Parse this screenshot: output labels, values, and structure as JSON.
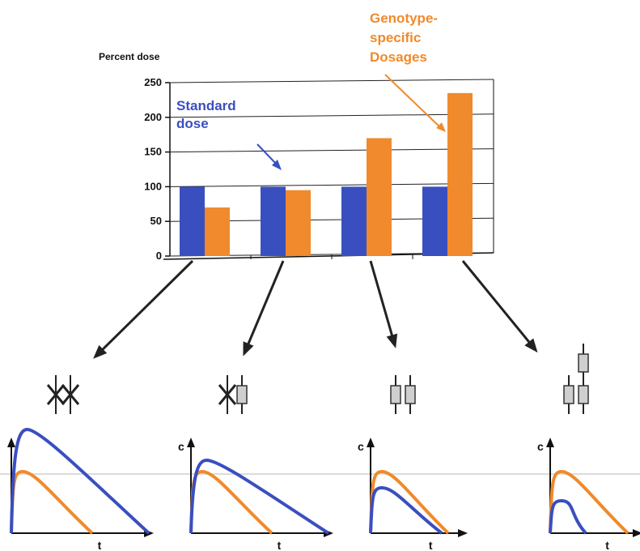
{
  "colors": {
    "standard": "#3a4fbf",
    "genotype": "#f08a2c",
    "axis": "#111111",
    "grid": "#222222",
    "gene": "#cfcfcf"
  },
  "chart_data": {
    "type": "bar",
    "ylabel": "Percent dose",
    "ylim": [
      0,
      250
    ],
    "yticks": [
      0,
      50,
      100,
      150,
      200,
      250
    ],
    "grid": true,
    "categories": [
      "",
      "",
      "",
      ""
    ],
    "series": [
      {
        "name": "Standard dose",
        "values": [
          100,
          100,
          100,
          100
        ]
      },
      {
        "name": "Genotype-specific Dosages",
        "values": [
          70,
          95,
          170,
          235
        ]
      }
    ],
    "annotations": [
      {
        "text": "Standard dose",
        "color": "standard"
      },
      {
        "text": "Genotype-specific Dosages",
        "color": "genotype"
      }
    ]
  },
  "labels": {
    "y_title": "Percent dose",
    "standard_line1": "Standard",
    "standard_line2": "dose",
    "geno_line1": "Genotype-",
    "geno_line2": "specific",
    "geno_line3": "Dosages",
    "conc_axis": "c",
    "time_axis": "t"
  },
  "genotypes": [
    {
      "alleles": [
        "null",
        "null"
      ]
    },
    {
      "alleles": [
        "null",
        "active"
      ]
    },
    {
      "alleles": [
        "active",
        "active"
      ]
    },
    {
      "alleles": [
        "active",
        "active",
        "active"
      ]
    }
  ]
}
